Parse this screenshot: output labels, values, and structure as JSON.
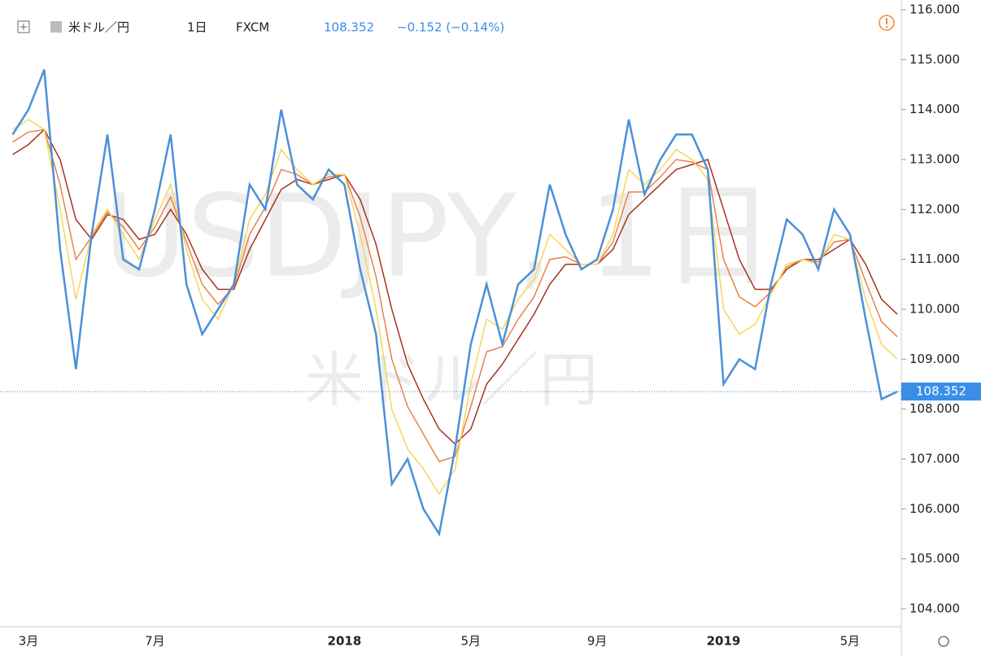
{
  "chart_data": {
    "type": "line",
    "symbol": "米ドル／円",
    "interval": "1日",
    "source": "FXCM",
    "last": 108.352,
    "change": "−0.152 (−0.14%)",
    "watermark": "USDJPY, 1日",
    "watermark_sub": "米ドル／円",
    "categories": [
      null,
      "3月",
      null,
      null,
      null,
      null,
      null,
      null,
      null,
      "7月",
      null,
      null,
      null,
      null,
      null,
      null,
      null,
      null,
      null,
      null,
      null,
      "2018",
      null,
      null,
      null,
      null,
      null,
      null,
      null,
      "5月",
      null,
      null,
      null,
      null,
      null,
      null,
      null,
      "9月",
      null,
      null,
      null,
      null,
      null,
      null,
      null,
      "2019",
      null,
      null,
      null,
      null,
      null,
      null,
      null,
      "5月",
      null,
      null,
      null
    ],
    "series": [
      {
        "color": "#4a90d9",
        "values": [
          113.5,
          114.0,
          114.8,
          111.2,
          108.8,
          111.5,
          113.5,
          111.0,
          110.8,
          112.0,
          113.5,
          110.5,
          109.5,
          110.0,
          110.5,
          112.5,
          112.0,
          114.0,
          112.5,
          112.2,
          112.8,
          112.5,
          110.8,
          109.5,
          106.5,
          107.0,
          106.0,
          105.5,
          107.2,
          109.3,
          110.5,
          109.3,
          110.5,
          110.8,
          112.5,
          111.5,
          110.8,
          111.0,
          112.0,
          113.8,
          112.3,
          113.0,
          113.5,
          113.5,
          112.8,
          108.5,
          109.0,
          108.8,
          110.5,
          111.8,
          111.5,
          110.8,
          112.0,
          111.5,
          109.8,
          108.2,
          108.352
        ]
      },
      {
        "color": "#f5d65a",
        "values": [
          113.6,
          113.8,
          113.6,
          112.0,
          110.2,
          111.5,
          112.0,
          111.5,
          111.0,
          111.8,
          112.5,
          111.2,
          110.2,
          109.8,
          110.5,
          111.8,
          112.3,
          113.2,
          112.8,
          112.5,
          112.7,
          112.7,
          111.5,
          110.0,
          108.0,
          107.2,
          106.8,
          106.3,
          106.8,
          108.5,
          109.8,
          109.6,
          110.2,
          110.6,
          111.5,
          111.2,
          110.9,
          110.9,
          111.5,
          112.8,
          112.5,
          112.8,
          113.2,
          113.0,
          112.6,
          110.0,
          109.5,
          109.7,
          110.3,
          110.9,
          111.0,
          110.9,
          111.5,
          111.4,
          110.2,
          109.3,
          109.0
        ]
      },
      {
        "color": "#e8834a",
        "values": [
          113.35,
          113.55,
          113.6,
          112.5,
          111.0,
          111.45,
          111.95,
          111.65,
          111.2,
          111.65,
          112.25,
          111.35,
          110.5,
          110.1,
          110.45,
          111.5,
          112.05,
          112.8,
          112.7,
          112.5,
          112.65,
          112.7,
          111.85,
          110.65,
          109.0,
          108.05,
          107.5,
          106.95,
          107.05,
          108.05,
          109.15,
          109.25,
          109.8,
          110.25,
          111.0,
          111.05,
          110.9,
          110.9,
          111.35,
          112.35,
          112.35,
          112.65,
          113.0,
          112.95,
          112.8,
          111.0,
          110.25,
          110.05,
          110.35,
          110.85,
          111.0,
          110.95,
          111.35,
          111.4,
          110.55,
          109.75,
          109.45
        ]
      },
      {
        "color": "#a8321e",
        "values": [
          113.1,
          113.3,
          113.6,
          113.0,
          111.8,
          111.4,
          111.9,
          111.8,
          111.4,
          111.5,
          112.0,
          111.5,
          110.8,
          110.4,
          110.4,
          111.2,
          111.8,
          112.4,
          112.6,
          112.5,
          112.6,
          112.7,
          112.2,
          111.3,
          110.0,
          108.9,
          108.2,
          107.6,
          107.3,
          107.6,
          108.5,
          108.9,
          109.4,
          109.9,
          110.5,
          110.9,
          110.9,
          110.9,
          111.2,
          111.9,
          112.2,
          112.5,
          112.8,
          112.9,
          113.0,
          112.0,
          111.0,
          110.4,
          110.4,
          110.8,
          111.0,
          111.0,
          111.2,
          111.4,
          110.9,
          110.2,
          109.9
        ]
      }
    ],
    "ylim": [
      104,
      116
    ],
    "yticks": [
      {
        "value": 104,
        "label": "104.000"
      },
      {
        "value": 105,
        "label": "105.000"
      },
      {
        "value": 106,
        "label": "106.000"
      },
      {
        "value": 107,
        "label": "107.000"
      },
      {
        "value": 108,
        "label": "108.000"
      },
      {
        "value": 109,
        "label": "109.000"
      },
      {
        "value": 110,
        "label": "110.000"
      },
      {
        "value": 111,
        "label": "111.000"
      },
      {
        "value": 112,
        "label": "112.000"
      },
      {
        "value": 113,
        "label": "113.000"
      },
      {
        "value": 114,
        "label": "114.000"
      },
      {
        "value": 115,
        "label": "115.000"
      },
      {
        "value": 116,
        "label": "116.000"
      }
    ]
  }
}
